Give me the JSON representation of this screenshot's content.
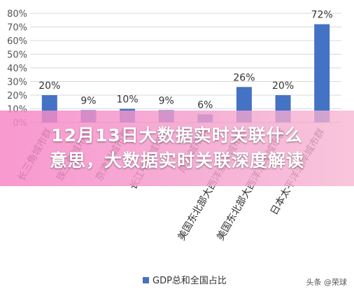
{
  "banner": {
    "line1": "12月13日大数据实时关联什么",
    "line2": "意思，大数据实时关联深度解读"
  },
  "watermark": "头条 @荣球",
  "chart_data": {
    "type": "bar",
    "categories": [
      "长三角城市群",
      "珠三角城市群",
      "京津冀城市群",
      "长江中游城市群",
      "成渝城市群",
      "美国东北部大西洋沿岸城市群",
      "美国东北部大西洋沿岸城市群",
      "日本太平洋沿岸城市群"
    ],
    "series": [
      {
        "name": "GDP总和全国占比",
        "values": [
          20,
          9,
          10,
          9,
          6,
          26,
          20,
          72
        ],
        "data_labels": [
          "20%",
          "9%",
          "10%",
          "9%",
          "6%",
          "26%",
          "20%",
          "72%"
        ],
        "color": "#4472C4"
      }
    ],
    "ylim": [
      0,
      80
    ],
    "yticks": [
      0,
      10,
      20,
      30,
      40,
      50,
      60,
      70,
      80
    ],
    "ytick_labels": [
      "0%",
      "10%",
      "20%",
      "30%",
      "40%",
      "50%",
      "60%",
      "70%",
      "80%"
    ],
    "grid": true,
    "legend": "bottom",
    "title": "",
    "xlabel": "",
    "ylabel": ""
  },
  "colors": {
    "bar": "#4472C4",
    "grid": "#d9d9d9",
    "axis": "#bfbfbf"
  }
}
